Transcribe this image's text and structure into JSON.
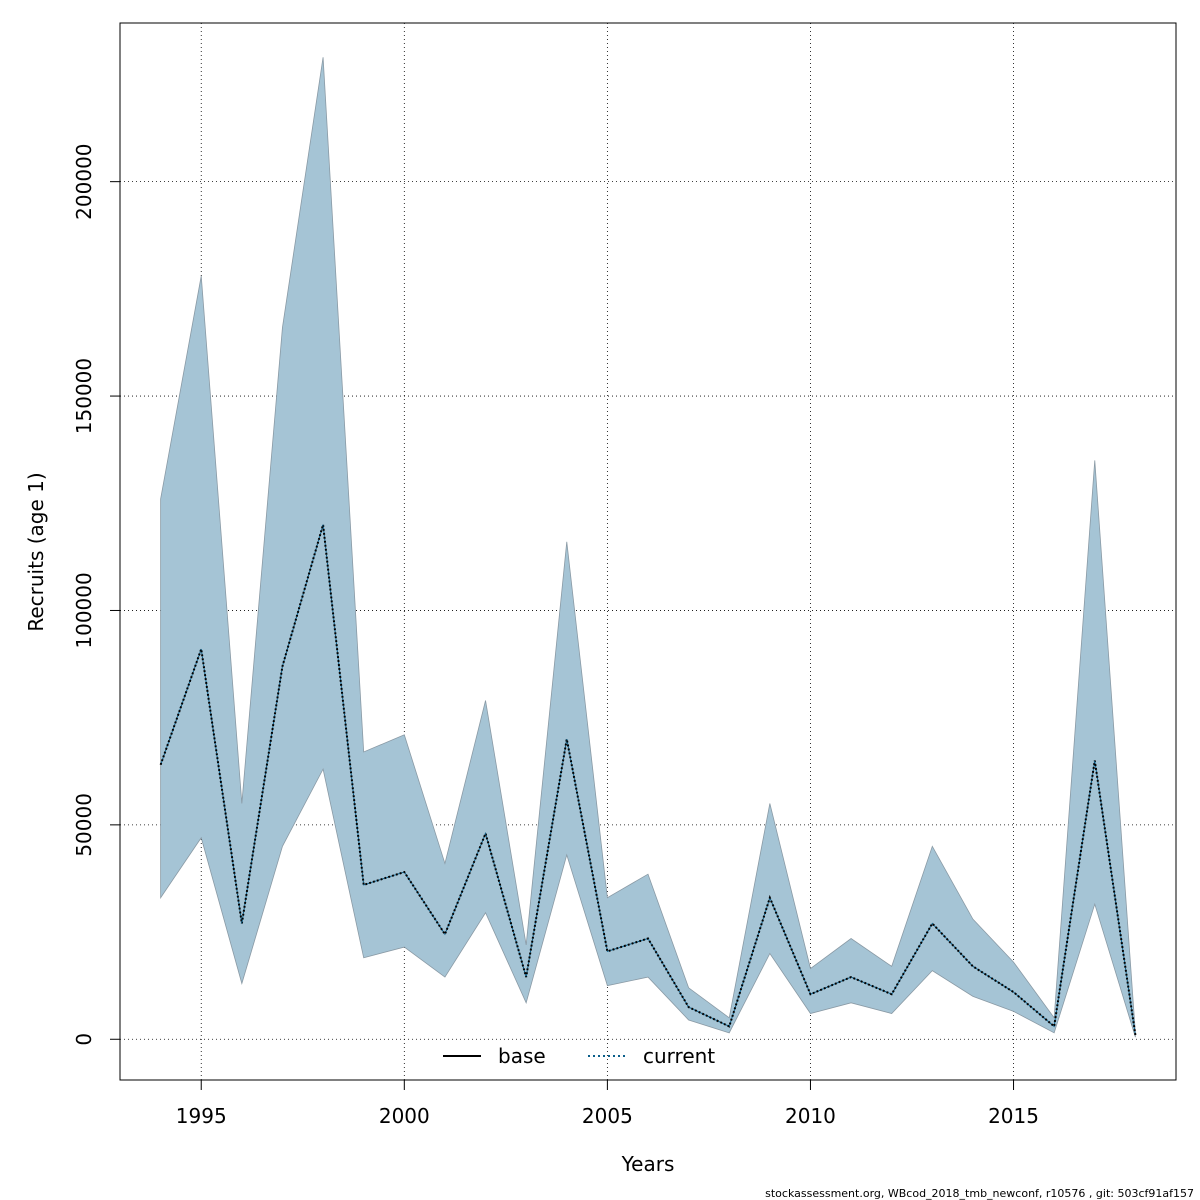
{
  "chart_data": {
    "type": "area",
    "xlabel": "Years",
    "ylabel": "Recruits (age 1)",
    "xlim": [
      1993,
      2019
    ],
    "ylim": [
      -9500,
      237000
    ],
    "x_ticks": [
      1995,
      2000,
      2005,
      2010,
      2015
    ],
    "y_ticks": [
      0,
      50000,
      100000,
      150000,
      200000
    ],
    "grid": true,
    "x": [
      1994,
      1995,
      1996,
      1997,
      1998,
      1999,
      2000,
      2001,
      2002,
      2003,
      2004,
      2005,
      2006,
      2007,
      2008,
      2009,
      2010,
      2011,
      2012,
      2013,
      2014,
      2015,
      2016,
      2017,
      2018
    ],
    "series": [
      {
        "name": "current",
        "values": [
          64000,
          91000,
          27000,
          87000,
          120000,
          36000,
          39000,
          24500,
          48000,
          14500,
          70000,
          20500,
          23500,
          7500,
          3000,
          33000,
          10500,
          14500,
          10500,
          27000,
          17000,
          11000,
          3000,
          65000,
          1000
        ]
      }
    ],
    "ci_band": {
      "upper": [
        126000,
        178000,
        55000,
        166000,
        229000,
        67000,
        71000,
        41000,
        79000,
        22000,
        116000,
        33000,
        38500,
        12000,
        5000,
        55000,
        16500,
        23500,
        17000,
        45000,
        28000,
        18000,
        5000,
        135000,
        1500
      ],
      "lower": [
        33000,
        47000,
        13000,
        45000,
        63000,
        19000,
        21500,
        14500,
        29500,
        8500,
        43000,
        12500,
        14500,
        4500,
        1500,
        20000,
        6000,
        8500,
        6000,
        16000,
        10000,
        6500,
        1500,
        31500,
        500
      ],
      "color": "#a5c4d5"
    },
    "legend": {
      "position": "bottom",
      "entries": [
        {
          "label": "base",
          "style": "solid"
        },
        {
          "label": "current",
          "style": "dotted"
        }
      ]
    }
  },
  "footer": "stockassessment.org, WBcod_2018_tmb_newconf, r10576 , git: 503cf91af157"
}
